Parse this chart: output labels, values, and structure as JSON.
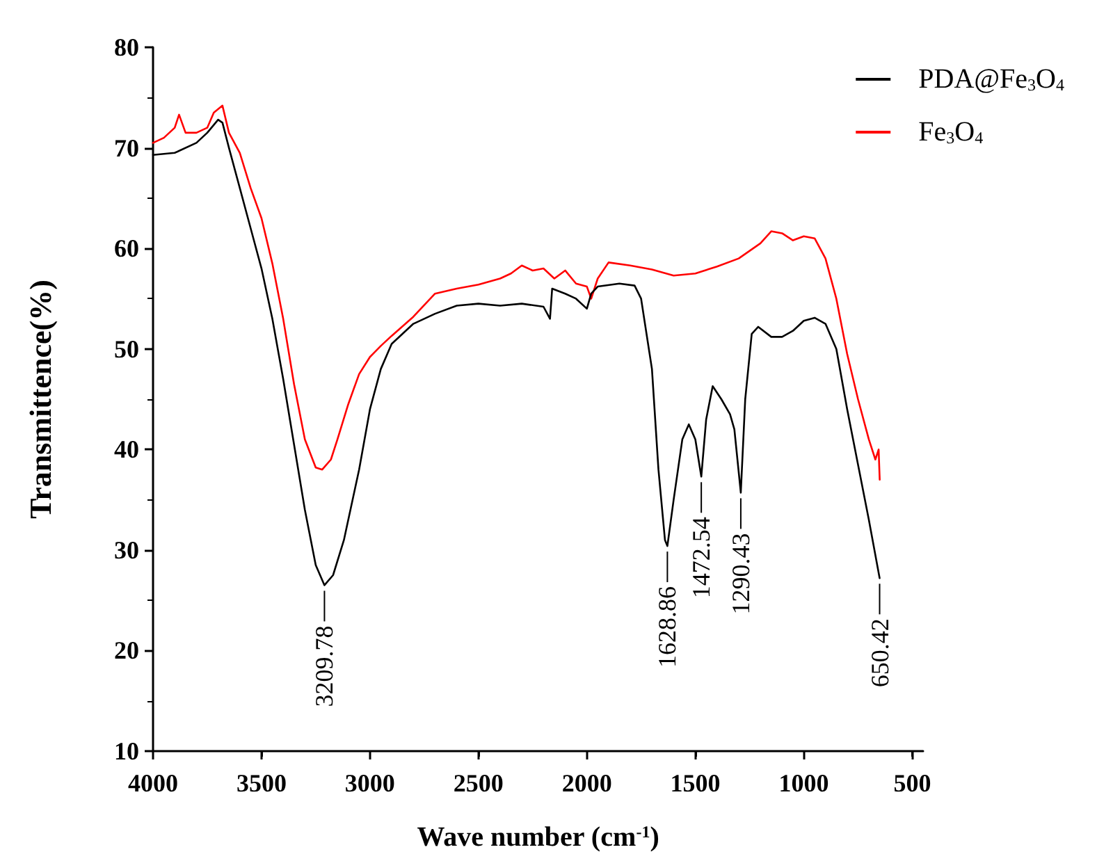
{
  "chart_data": {
    "type": "line",
    "xlabel": "Wave number (cm$^{-1}$)",
    "ylabel": "Transmittence(%)",
    "xlim": [
      4000,
      450
    ],
    "xticks": [
      4000,
      3500,
      3000,
      2500,
      2000,
      1500,
      1000,
      500
    ],
    "ylim": [
      10,
      80
    ],
    "yticks": [
      10,
      20,
      30,
      40,
      50,
      60,
      70,
      80
    ],
    "grid": false,
    "legend": "top right",
    "marker": "none",
    "line_style": "solid",
    "series": [
      {
        "name": "PDA@Fe$_{3}$O$_{4}$",
        "color": "#000000",
        "x": [
          4000,
          3900,
          3800,
          3750,
          3700,
          3680,
          3650,
          3600,
          3550,
          3500,
          3450,
          3400,
          3350,
          3300,
          3250,
          3209.78,
          3170,
          3120,
          3050,
          3000,
          2950,
          2900,
          2800,
          2700,
          2600,
          2500,
          2400,
          2300,
          2200,
          2170,
          2160,
          2100,
          2050,
          2000,
          1980,
          1950,
          1850,
          1780,
          1750,
          1700,
          1670,
          1640,
          1628.86,
          1600,
          1560,
          1530,
          1500,
          1472.54,
          1450,
          1420,
          1380,
          1340,
          1320,
          1290.43,
          1270,
          1240,
          1210,
          1150,
          1100,
          1050,
          1000,
          950,
          900,
          850,
          800,
          750,
          700,
          650.42
        ],
        "values": [
          69.3,
          69.5,
          70.5,
          71.5,
          72.8,
          72.5,
          70,
          66,
          62,
          58,
          53,
          47,
          40.5,
          34,
          28.5,
          26.5,
          27.5,
          31,
          38,
          44,
          48,
          50.5,
          52.5,
          53.5,
          54.3,
          54.5,
          54.3,
          54.5,
          54.2,
          53,
          56,
          55.5,
          55,
          54,
          55.5,
          56.2,
          56.5,
          56.3,
          55,
          48,
          38,
          31,
          30.4,
          35,
          41,
          42.5,
          41,
          37.3,
          43,
          46.3,
          45,
          43.5,
          42,
          35.7,
          45,
          51.5,
          52.2,
          51.2,
          51.2,
          51.8,
          52.8,
          53.1,
          52.5,
          50,
          44,
          38.5,
          33,
          27.2
        ]
      },
      {
        "name": "Fe$_{3}$O$_{4}$",
        "color": "#ff0000",
        "x": [
          4000,
          3950,
          3900,
          3880,
          3850,
          3800,
          3750,
          3720,
          3680,
          3650,
          3600,
          3550,
          3500,
          3450,
          3400,
          3350,
          3300,
          3250,
          3220,
          3180,
          3150,
          3100,
          3050,
          3000,
          2950,
          2900,
          2800,
          2700,
          2600,
          2500,
          2400,
          2350,
          2300,
          2250,
          2200,
          2150,
          2100,
          2050,
          2000,
          1980,
          1950,
          1900,
          1800,
          1700,
          1600,
          1500,
          1400,
          1300,
          1200,
          1150,
          1100,
          1050,
          1000,
          950,
          900,
          850,
          800,
          750,
          700,
          670,
          655,
          650
        ],
        "values": [
          70.5,
          71,
          72,
          73.3,
          71.5,
          71.5,
          72,
          73.5,
          74.2,
          71.5,
          69.5,
          66,
          63,
          58.5,
          53,
          46.5,
          41,
          38.2,
          38,
          39,
          41,
          44.5,
          47.5,
          49.2,
          50.3,
          51.3,
          53.2,
          55.5,
          56,
          56.4,
          57,
          57.5,
          58.3,
          57.8,
          58,
          57,
          57.8,
          56.5,
          56.2,
          55,
          57,
          58.6,
          58.3,
          57.9,
          57.3,
          57.5,
          58.2,
          59,
          60.5,
          61.7,
          61.5,
          60.8,
          61.2,
          61,
          59,
          55,
          49.5,
          45,
          41,
          39,
          40,
          37
        ]
      }
    ],
    "annotations": [
      {
        "text": "3209.78",
        "x": 3209.78,
        "y": 26.5
      },
      {
        "text": "1628.86",
        "x": 1628.86,
        "y": 30.4
      },
      {
        "text": "1472.54",
        "x": 1472.54,
        "y": 37.3
      },
      {
        "text": "1290.43",
        "x": 1290.43,
        "y": 35.7
      },
      {
        "text": "650.42",
        "x": 650.42,
        "y": 27.2
      }
    ]
  }
}
